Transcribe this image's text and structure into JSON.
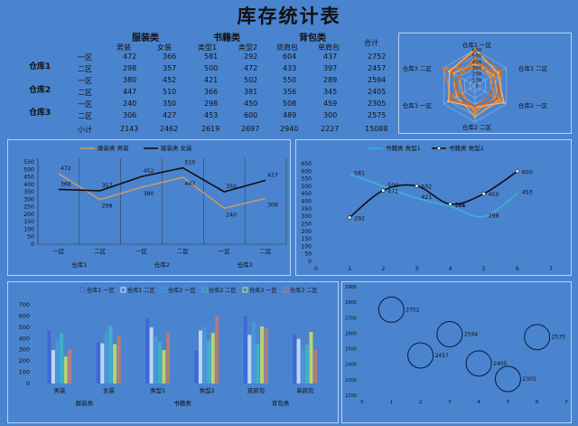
{
  "title": "库存统计表",
  "table": {
    "groups": [
      "服装类",
      "书籍类",
      "背包类"
    ],
    "sub_headers": [
      "男装",
      "女装",
      "类型1",
      "类型2",
      "双肩包",
      "单肩包"
    ],
    "total_header": "合计",
    "warehouses": [
      "仓库1",
      "仓库2",
      "仓库3"
    ],
    "rows": [
      {
        "zone": "一区",
        "vals": [
          "472",
          "366",
          "581",
          "292",
          "604",
          "437",
          "2752"
        ]
      },
      {
        "zone": "二区",
        "vals": [
          "298",
          "357",
          "500",
          "472",
          "433",
          "397",
          "2457"
        ]
      },
      {
        "zone": "一区",
        "vals": [
          "380",
          "452",
          "421",
          "502",
          "550",
          "289",
          "2594"
        ]
      },
      {
        "zone": "二区",
        "vals": [
          "447",
          "510",
          "366",
          "381",
          "356",
          "345",
          "2405"
        ]
      },
      {
        "zone": "一区",
        "vals": [
          "240",
          "350",
          "298",
          "450",
          "508",
          "459",
          "2305"
        ]
      },
      {
        "zone": "二区",
        "vals": [
          "306",
          "427",
          "453",
          "600",
          "489",
          "300",
          "2575"
        ]
      }
    ],
    "subtotal": {
      "label": "小计",
      "vals": [
        "2143",
        "2462",
        "2619",
        "2697",
        "2940",
        "2227",
        "15088"
      ]
    }
  },
  "chart_data": [
    {
      "type": "radar",
      "categories": [
        "仓库1 一区",
        "仓库1 二区",
        "仓库2 一区",
        "仓库2 二区",
        "仓库3 一区",
        "仓库3 二区"
      ],
      "series": [
        {
          "name": "男装",
          "values": [
            472,
            298,
            380,
            447,
            240,
            306
          ]
        },
        {
          "name": "女装",
          "values": [
            366,
            357,
            452,
            510,
            350,
            427
          ]
        },
        {
          "name": "类型1",
          "values": [
            581,
            500,
            421,
            366,
            298,
            453
          ]
        },
        {
          "name": "类型2",
          "values": [
            292,
            472,
            502,
            381,
            450,
            600
          ]
        },
        {
          "name": "双肩包",
          "values": [
            604,
            433,
            550,
            356,
            508,
            489
          ]
        },
        {
          "name": "单肩包",
          "values": [
            437,
            397,
            289,
            345,
            459,
            300
          ]
        }
      ],
      "radial_ticks": [
        "600",
        "500",
        "400",
        "300",
        "200",
        "100",
        "0"
      ],
      "colors": [
        "#f08a2e",
        "#f0a050",
        "#c86414",
        "#e07a28",
        "#f4b070",
        "#d06a1a"
      ]
    },
    {
      "type": "line",
      "group_labels": [
        "仓库1",
        "仓库2",
        "仓库3"
      ],
      "categories": [
        "一区",
        "二区",
        "一区",
        "二区",
        "一区",
        "二区"
      ],
      "series": [
        {
          "name": "服装类 男装",
          "values": [
            472,
            298,
            380,
            447,
            240,
            306
          ],
          "color": "#c49a6a"
        },
        {
          "name": "服装类 女装",
          "values": [
            366,
            357,
            452,
            510,
            350,
            427
          ],
          "color": "#111111"
        }
      ],
      "ylim": [
        0,
        550
      ],
      "yticks": [
        "0",
        "50",
        "100",
        "150",
        "200",
        "250",
        "300",
        "350",
        "400",
        "450",
        "500",
        "550"
      ]
    },
    {
      "type": "line",
      "x": [
        1,
        2,
        3,
        4,
        5,
        6
      ],
      "series": [
        {
          "name": "书籍类 类型1",
          "values": [
            581,
            500,
            421,
            366,
            298,
            453
          ],
          "color": "#3fb0d8"
        },
        {
          "name": "书籍类 类型2",
          "values": [
            292,
            472,
            502,
            381,
            450,
            600
          ],
          "color": "#111111"
        }
      ],
      "xlim": [
        0,
        7
      ],
      "ylim": [
        0,
        650
      ],
      "xticks": [
        "0",
        "1",
        "2",
        "3",
        "4",
        "5",
        "6",
        "7"
      ],
      "yticks": [
        "0",
        "50",
        "100",
        "150",
        "200",
        "250",
        "300",
        "350",
        "400",
        "450",
        "500",
        "550",
        "600",
        "650"
      ]
    },
    {
      "type": "bar",
      "group_labels": [
        "服装类",
        "书籍类",
        "背包类"
      ],
      "categories": [
        "男装",
        "女装",
        "类型1",
        "类型2",
        "双肩包",
        "单肩包"
      ],
      "series": [
        {
          "name": "仓库1 一区",
          "values": [
            472,
            366,
            581,
            292,
            604,
            437
          ],
          "color": "#3d63d8"
        },
        {
          "name": "仓库1 二区",
          "values": [
            298,
            357,
            500,
            472,
            433,
            397
          ],
          "color": "#cfe4fb"
        },
        {
          "name": "仓库2 一区",
          "values": [
            380,
            452,
            421,
            502,
            550,
            289
          ],
          "color": "#4a9ad8"
        },
        {
          "name": "仓库2 二区",
          "values": [
            447,
            510,
            366,
            381,
            356,
            345
          ],
          "color": "#3fb6c8"
        },
        {
          "name": "仓库3 一区",
          "values": [
            240,
            350,
            298,
            450,
            508,
            459
          ],
          "color": "#cde05a"
        },
        {
          "name": "仓库3 二区",
          "values": [
            306,
            427,
            453,
            600,
            489,
            300
          ],
          "color": "#c47a6e"
        }
      ],
      "ylim": [
        0,
        700
      ],
      "yticks": [
        "0",
        "100",
        "200",
        "300",
        "400",
        "500",
        "600",
        "700"
      ]
    },
    {
      "type": "scatter",
      "points": [
        {
          "x": 1,
          "y": 2752,
          "label": "2752"
        },
        {
          "x": 2,
          "y": 2457,
          "label": "2457"
        },
        {
          "x": 3,
          "y": 2594,
          "label": "2594"
        },
        {
          "x": 4,
          "y": 2405,
          "label": "2405"
        },
        {
          "x": 5,
          "y": 2305,
          "label": "2305"
        },
        {
          "x": 6,
          "y": 2575,
          "label": "2575"
        }
      ],
      "xlim": [
        0,
        7
      ],
      "ylim": [
        2200,
        2900
      ],
      "xticks": [
        "0",
        "1",
        "2",
        "3",
        "4",
        "5",
        "6",
        "7"
      ],
      "yticks": [
        "2200",
        "2300",
        "2400",
        "2500",
        "2600",
        "2700",
        "2800",
        "2900"
      ]
    }
  ]
}
